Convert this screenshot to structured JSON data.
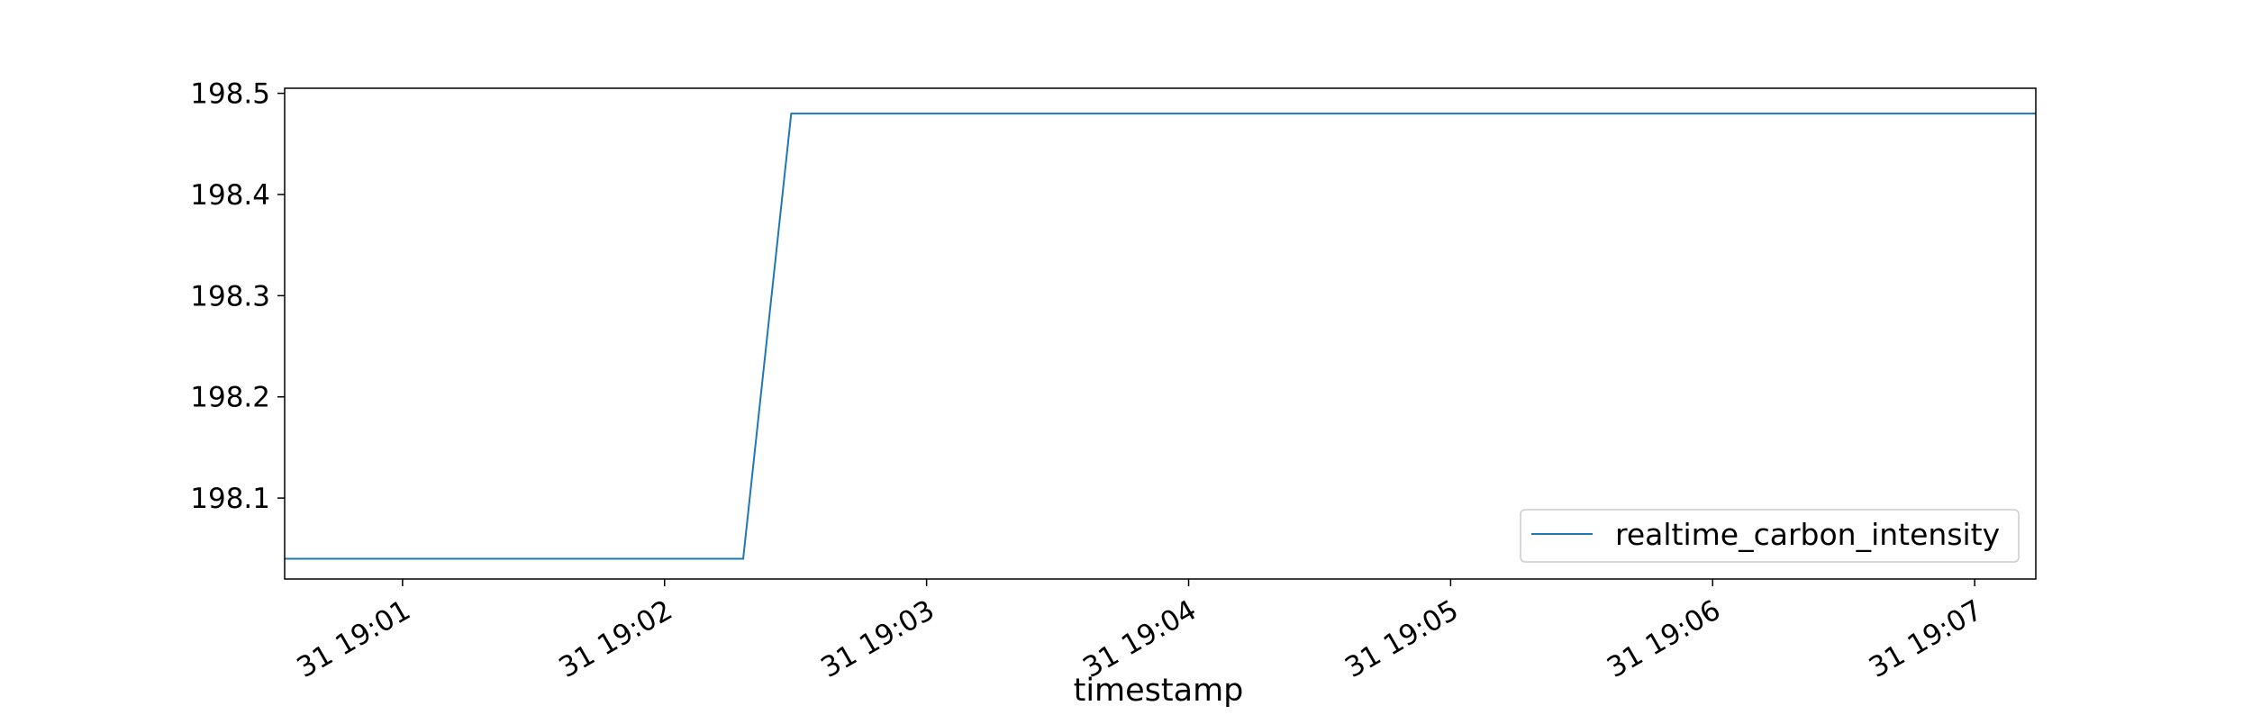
{
  "chart_data": {
    "type": "line",
    "xlabel": "timestamp",
    "ylabel": "",
    "title": "",
    "ylim": [
      198.02,
      198.505
    ],
    "xlim": [
      "19:00:33",
      "19:07:14"
    ],
    "yticks": [
      {
        "value": 198.1,
        "label": "198.1"
      },
      {
        "value": 198.2,
        "label": "198.2"
      },
      {
        "value": 198.3,
        "label": "198.3"
      },
      {
        "value": 198.4,
        "label": "198.4"
      },
      {
        "value": 198.5,
        "label": "198.5"
      }
    ],
    "xticks": [
      {
        "value": "19:01:00",
        "label": "31 19:01"
      },
      {
        "value": "19:02:00",
        "label": "31 19:02"
      },
      {
        "value": "19:03:00",
        "label": "31 19:03"
      },
      {
        "value": "19:04:00",
        "label": "31 19:04"
      },
      {
        "value": "19:05:00",
        "label": "31 19:05"
      },
      {
        "value": "19:06:00",
        "label": "31 19:06"
      },
      {
        "value": "19:07:00",
        "label": "31 19:07"
      }
    ],
    "series": [
      {
        "name": "realtime_carbon_intensity",
        "color": "#1f77b4",
        "points": [
          {
            "x": "19:00:33",
            "y": 198.04
          },
          {
            "x": "19:02:18",
            "y": 198.04
          },
          {
            "x": "19:02:29",
            "y": 198.48
          },
          {
            "x": "19:07:14",
            "y": 198.48
          }
        ]
      }
    ],
    "legend": {
      "placement": "lower-right"
    },
    "grid": false
  }
}
